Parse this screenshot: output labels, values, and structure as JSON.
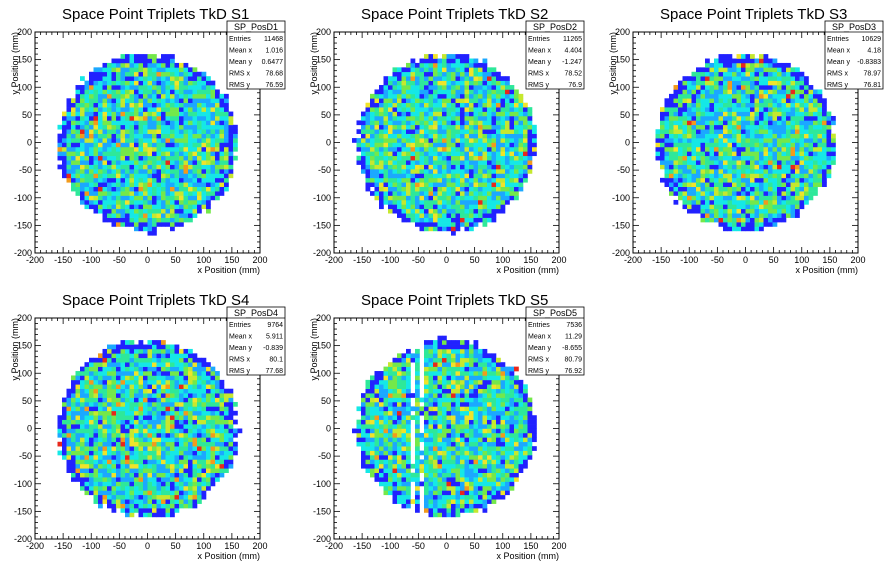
{
  "colors": {
    "palette": [
      "#2121ff",
      "#1ba8ff",
      "#15e8e6",
      "#2ee89a",
      "#74e84a",
      "#c6e82e",
      "#f0e42a",
      "#f29a1c",
      "#e8281c"
    ],
    "axis": "#000000",
    "background": "#ffffff"
  },
  "stat_labels": {
    "entries": "Entries",
    "mean_x": "Mean x",
    "mean_y": "Mean y",
    "rms_x": "RMS x",
    "rms_y": "RMS y"
  },
  "chart_data": [
    {
      "type": "heatmap",
      "title": "Space Point Triplets TkD S1",
      "xlabel": "x Position (mm)",
      "ylabel": "y Position (mm)",
      "xlim": [
        -200,
        200
      ],
      "ylim": [
        -200,
        200
      ],
      "x_ticks": [
        "-200",
        "-150",
        "-100",
        "-50",
        "0",
        "50",
        "100",
        "150",
        "200"
      ],
      "y_ticks": [
        "-200",
        "-150",
        "-100",
        "-50",
        "0",
        "50",
        "100",
        "150",
        "200"
      ],
      "region_radius": 160,
      "stats": {
        "name": "SP_PosD1",
        "entries": "11468",
        "mean_x": "1.016",
        "mean_y": "0.6477",
        "rms_x": "78.68",
        "rms_y": "76.59"
      }
    },
    {
      "type": "heatmap",
      "title": "Space Point Triplets TkD S2",
      "xlabel": "x Position (mm)",
      "ylabel": "y Position (mm)",
      "xlim": [
        -200,
        200
      ],
      "ylim": [
        -200,
        200
      ],
      "x_ticks": [
        "-200",
        "-150",
        "-100",
        "-50",
        "0",
        "50",
        "100",
        "150",
        "200"
      ],
      "y_ticks": [
        "-200",
        "-150",
        "-100",
        "-50",
        "0",
        "50",
        "100",
        "150",
        "200"
      ],
      "region_radius": 160,
      "stats": {
        "name": "SP_PosD2",
        "entries": "11265",
        "mean_x": "4.404",
        "mean_y": "-1.247",
        "rms_x": "78.52",
        "rms_y": "76.9"
      }
    },
    {
      "type": "heatmap",
      "title": "Space Point Triplets TkD S3",
      "xlabel": "x Position (mm)",
      "ylabel": "y Position (mm)",
      "xlim": [
        -200,
        200
      ],
      "ylim": [
        -200,
        200
      ],
      "x_ticks": [
        "-200",
        "-150",
        "-100",
        "-50",
        "0",
        "50",
        "100",
        "150",
        "200"
      ],
      "y_ticks": [
        "-200",
        "-150",
        "-100",
        "-50",
        "0",
        "50",
        "100",
        "150",
        "200"
      ],
      "region_radius": 160,
      "stats": {
        "name": "SP_PosD3",
        "entries": "10629",
        "mean_x": "4.18",
        "mean_y": "-0.8383",
        "rms_x": "78.97",
        "rms_y": "76.81"
      }
    },
    {
      "type": "heatmap",
      "title": "Space Point Triplets TkD S4",
      "xlabel": "x Position (mm)",
      "ylabel": "y Position (mm)",
      "xlim": [
        -200,
        200
      ],
      "ylim": [
        -200,
        200
      ],
      "x_ticks": [
        "-200",
        "-150",
        "-100",
        "-50",
        "0",
        "50",
        "100",
        "150",
        "200"
      ],
      "y_ticks": [
        "-200",
        "-150",
        "-100",
        "-50",
        "0",
        "50",
        "100",
        "150",
        "200"
      ],
      "region_radius": 160,
      "stats": {
        "name": "SP_PosD4",
        "entries": "9764",
        "mean_x": "5.911",
        "mean_y": "-0.839",
        "rms_x": "80.1",
        "rms_y": "77.68"
      }
    },
    {
      "type": "heatmap",
      "title": "Space Point Triplets TkD S5",
      "xlabel": "x Position (mm)",
      "ylabel": "y Position (mm)",
      "xlim": [
        -200,
        200
      ],
      "ylim": [
        -200,
        200
      ],
      "x_ticks": [
        "-200",
        "-150",
        "-100",
        "-50",
        "0",
        "50",
        "100",
        "150",
        "200"
      ],
      "y_ticks": [
        "-200",
        "-150",
        "-100",
        "-50",
        "0",
        "50",
        "100",
        "150",
        "200"
      ],
      "region_radius": 160,
      "gap_columns_x": [
        -80,
        -60,
        -45
      ],
      "stats": {
        "name": "SP_PosD5",
        "entries": "7536",
        "mean_x": "11.29",
        "mean_y": "-8.655",
        "rms_x": "80.79",
        "rms_y": "76.92"
      }
    }
  ]
}
